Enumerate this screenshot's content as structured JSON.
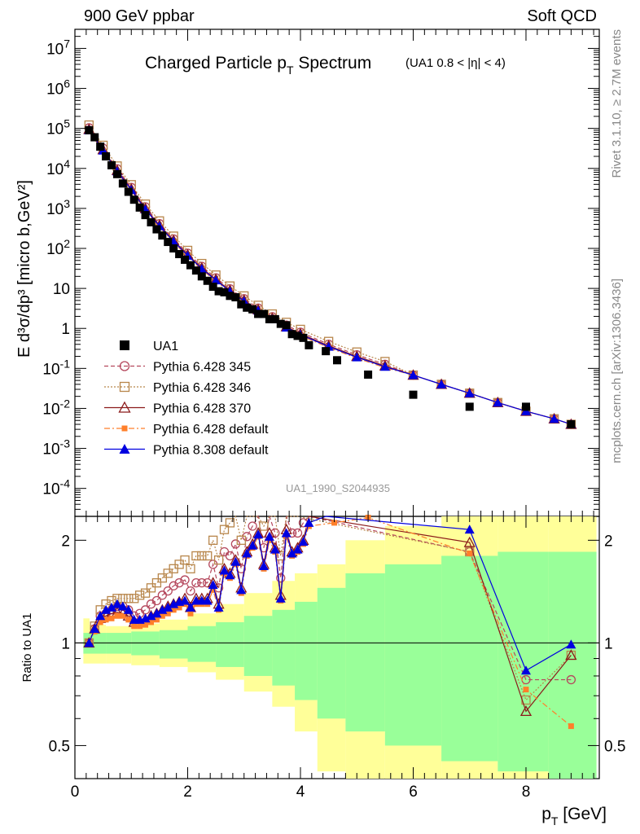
{
  "header": {
    "left": "900 GeV ppbar",
    "right": "Soft QCD"
  },
  "side": {
    "rivet": "Rivet 3.1.10, ≥ 2.7M events",
    "mcplots": "mcplots.cern.ch [arXiv:1306.3436]"
  },
  "title": {
    "main_pre": "Charged Particle p",
    "main_sub": "T",
    "main_post": " Spectrum",
    "cut": "(UA1 0.8 < |η| < 4)"
  },
  "analysis_id": "UA1_1990_S2044935",
  "axes": {
    "y_main_label": "E d³σ/dp³ [micro b,GeV²]",
    "y_ratio_label": "Ratio to UA1",
    "x_label_pre": "p",
    "x_label_sub": "T",
    "x_label_post": " [GeV]"
  },
  "chart_data": {
    "type": "scatter",
    "log_y_main": true,
    "log_y_ratio": true,
    "xlim": [
      0,
      9.3
    ],
    "ylim_main": [
      2e-05,
      30000000
    ],
    "ylim_ratio": [
      0.4,
      2.35
    ],
    "x_ticks": [
      0,
      2,
      4,
      6,
      8
    ],
    "y_main_ticks": [
      {
        "v": 10000000,
        "label": "10^7"
      },
      {
        "v": 1000000,
        "label": "10^6"
      },
      {
        "v": 100000,
        "label": "10^5"
      },
      {
        "v": 10000,
        "label": "10^4"
      },
      {
        "v": 1000,
        "label": "10^3"
      },
      {
        "v": 100,
        "label": "10^2"
      },
      {
        "v": 10,
        "label": "10"
      },
      {
        "v": 1,
        "label": "1"
      },
      {
        "v": 0.1,
        "label": "10^-1"
      },
      {
        "v": 0.01,
        "label": "10^-2"
      },
      {
        "v": 0.001,
        "label": "10^-3"
      },
      {
        "v": 0.0001,
        "label": "10^-4"
      }
    ],
    "y_ratio_ticks": [
      {
        "v": 0.5,
        "label": "0.5"
      },
      {
        "v": 1,
        "label": "1"
      },
      {
        "v": 2,
        "label": "2"
      }
    ],
    "series": [
      {
        "name": "UA1",
        "color": "#000000",
        "marker": "filled-square",
        "line": "none"
      },
      {
        "name": "Pythia 6.428 345",
        "color": "#b5485d",
        "marker": "open-circle",
        "line": "dashed"
      },
      {
        "name": "Pythia 6.428 346",
        "color": "#b8864b",
        "marker": "open-square",
        "line": "dotted"
      },
      {
        "name": "Pythia 6.428 370",
        "color": "#8b1a1a",
        "marker": "open-triangle",
        "line": "solid"
      },
      {
        "name": "Pythia 6.428 default",
        "color": "#ff7f2a",
        "marker": "filled-square-small",
        "line": "dashdot"
      },
      {
        "name": "Pythia 8.308 default",
        "color": "#0000e0",
        "marker": "filled-triangle",
        "line": "solid"
      }
    ],
    "data_x": [
      0.25,
      0.35,
      0.45,
      0.55,
      0.65,
      0.75,
      0.85,
      0.95,
      1.05,
      1.15,
      1.25,
      1.35,
      1.45,
      1.55,
      1.65,
      1.75,
      1.85,
      1.95,
      2.05,
      2.15,
      2.25,
      2.35,
      2.45,
      2.55,
      2.65,
      2.75,
      2.85,
      2.95,
      3.05,
      3.15,
      3.25,
      3.35,
      3.45,
      3.55,
      3.65,
      3.75,
      3.85,
      3.95,
      4.05,
      4.15,
      4.45,
      4.65,
      5.2,
      6.0,
      7.0,
      8.0,
      8.8
    ],
    "data_y": [
      90000,
      60000,
      35000,
      20000,
      12000,
      7200,
      4200,
      2600,
      1650,
      1050,
      680,
      450,
      300,
      210,
      145,
      100,
      72,
      52,
      38,
      28,
      20,
      15.5,
      11,
      8.5,
      8,
      6.5,
      6,
      4,
      3.3,
      3,
      2.3,
      2.3,
      1.7,
      1.7,
      1.3,
      1.2,
      0.72,
      0.65,
      0.58,
      0.38,
      0.27,
      0.16,
      0.07,
      0.022,
      0.011,
      0.011,
      0.004
    ],
    "mc_curve": [
      [
        0.25,
        90000
      ],
      [
        0.5,
        28000
      ],
      [
        0.75,
        8500
      ],
      [
        1.0,
        2900
      ],
      [
        1.25,
        950
      ],
      [
        1.5,
        360
      ],
      [
        1.75,
        150
      ],
      [
        2.0,
        66
      ],
      [
        2.25,
        31
      ],
      [
        2.5,
        16
      ],
      [
        2.75,
        8.5
      ],
      [
        3.0,
        4.8
      ],
      [
        3.25,
        2.8
      ],
      [
        3.5,
        1.7
      ],
      [
        3.75,
        1.05
      ],
      [
        4.0,
        0.7
      ],
      [
        4.5,
        0.35
      ],
      [
        5.0,
        0.19
      ],
      [
        5.5,
        0.11
      ],
      [
        6.0,
        0.068
      ],
      [
        6.5,
        0.04
      ],
      [
        7.0,
        0.024
      ],
      [
        7.5,
        0.014
      ],
      [
        8.0,
        0.0085
      ],
      [
        8.5,
        0.0055
      ],
      [
        8.8,
        0.004
      ]
    ],
    "ratio": {
      "pythia6_345": [
        [
          0.25,
          1.0
        ],
        [
          0.35,
          1.1
        ],
        [
          0.45,
          1.2
        ],
        [
          0.55,
          1.22
        ],
        [
          0.65,
          1.25
        ],
        [
          0.75,
          1.28
        ],
        [
          0.85,
          1.28
        ],
        [
          0.95,
          1.25
        ],
        [
          1.05,
          1.2
        ],
        [
          1.15,
          1.22
        ],
        [
          1.25,
          1.25
        ],
        [
          1.35,
          1.3
        ],
        [
          1.45,
          1.33
        ],
        [
          1.55,
          1.38
        ],
        [
          1.65,
          1.42
        ],
        [
          1.75,
          1.47
        ],
        [
          1.85,
          1.5
        ],
        [
          1.95,
          1.53
        ],
        [
          2.05,
          1.42
        ],
        [
          2.15,
          1.5
        ],
        [
          2.25,
          1.5
        ],
        [
          2.35,
          1.5
        ],
        [
          2.45,
          1.7
        ],
        [
          2.55,
          1.45
        ],
        [
          2.65,
          1.85
        ],
        [
          2.75,
          1.8
        ],
        [
          2.85,
          1.95
        ],
        [
          2.95,
          1.65
        ],
        [
          3.05,
          2.05
        ],
        [
          3.15,
          2.2
        ],
        [
          3.25,
          2.35
        ],
        [
          3.35,
          1.9
        ],
        [
          3.45,
          2.35
        ],
        [
          3.55,
          2.1
        ],
        [
          3.65,
          1.55
        ],
        [
          3.75,
          2.35
        ],
        [
          3.85,
          2.1
        ],
        [
          3.95,
          2.1
        ],
        [
          4.05,
          2.25
        ],
        [
          4.15,
          2.35
        ],
        [
          7.0,
          1.85
        ],
        [
          8.0,
          0.78
        ],
        [
          8.8,
          0.78
        ]
      ],
      "pythia6_346": [
        [
          0.25,
          1.0
        ],
        [
          0.35,
          1.12
        ],
        [
          0.45,
          1.25
        ],
        [
          0.55,
          1.3
        ],
        [
          0.65,
          1.33
        ],
        [
          0.75,
          1.35
        ],
        [
          0.85,
          1.35
        ],
        [
          0.95,
          1.35
        ],
        [
          1.05,
          1.35
        ],
        [
          1.15,
          1.38
        ],
        [
          1.25,
          1.4
        ],
        [
          1.35,
          1.45
        ],
        [
          1.45,
          1.5
        ],
        [
          1.55,
          1.55
        ],
        [
          1.65,
          1.6
        ],
        [
          1.75,
          1.65
        ],
        [
          1.85,
          1.7
        ],
        [
          1.95,
          1.75
        ],
        [
          2.05,
          1.65
        ],
        [
          2.15,
          1.8
        ],
        [
          2.25,
          1.8
        ],
        [
          2.35,
          1.8
        ],
        [
          2.45,
          2.0
        ],
        [
          2.55,
          1.75
        ],
        [
          2.65,
          2.15
        ],
        [
          2.75,
          2.25
        ],
        [
          2.85,
          2.35
        ],
        [
          2.95,
          2.0
        ],
        [
          3.05,
          2.35
        ],
        [
          3.15,
          2.35
        ],
        [
          3.25,
          2.35
        ],
        [
          3.35,
          2.2
        ],
        [
          3.45,
          2.35
        ],
        [
          3.55,
          2.35
        ],
        [
          3.65,
          1.8
        ],
        [
          3.75,
          2.35
        ],
        [
          3.85,
          2.35
        ],
        [
          3.95,
          2.35
        ],
        [
          7.0,
          1.85
        ],
        [
          8.0,
          0.68
        ],
        [
          8.8,
          0.92
        ]
      ],
      "pythia6_370": [
        [
          0.25,
          1.0
        ],
        [
          0.35,
          1.1
        ],
        [
          0.45,
          1.18
        ],
        [
          0.55,
          1.2
        ],
        [
          0.65,
          1.22
        ],
        [
          0.75,
          1.23
        ],
        [
          0.85,
          1.22
        ],
        [
          0.95,
          1.2
        ],
        [
          1.05,
          1.15
        ],
        [
          1.15,
          1.15
        ],
        [
          1.25,
          1.17
        ],
        [
          1.35,
          1.2
        ],
        [
          1.45,
          1.22
        ],
        [
          1.55,
          1.25
        ],
        [
          1.65,
          1.28
        ],
        [
          1.75,
          1.3
        ],
        [
          1.85,
          1.32
        ],
        [
          1.95,
          1.35
        ],
        [
          2.05,
          1.27
        ],
        [
          2.15,
          1.35
        ],
        [
          2.25,
          1.35
        ],
        [
          2.35,
          1.35
        ],
        [
          2.45,
          1.5
        ],
        [
          2.55,
          1.3
        ],
        [
          2.65,
          1.65
        ],
        [
          2.75,
          1.6
        ],
        [
          2.85,
          1.75
        ],
        [
          2.95,
          1.45
        ],
        [
          3.05,
          1.85
        ],
        [
          3.15,
          1.95
        ],
        [
          3.25,
          2.1
        ],
        [
          3.35,
          1.7
        ],
        [
          3.45,
          2.1
        ],
        [
          3.55,
          1.9
        ],
        [
          3.65,
          1.38
        ],
        [
          3.75,
          2.15
        ],
        [
          3.85,
          1.85
        ],
        [
          3.95,
          1.9
        ],
        [
          4.05,
          2.0
        ],
        [
          4.15,
          2.35
        ],
        [
          7.0,
          1.97
        ],
        [
          8.0,
          0.63
        ],
        [
          8.8,
          0.92
        ]
      ],
      "pythia6_default": [
        [
          0.25,
          1.0
        ],
        [
          0.35,
          1.08
        ],
        [
          0.45,
          1.15
        ],
        [
          0.55,
          1.17
        ],
        [
          0.65,
          1.18
        ],
        [
          0.75,
          1.2
        ],
        [
          0.85,
          1.2
        ],
        [
          0.95,
          1.17
        ],
        [
          1.05,
          1.12
        ],
        [
          1.15,
          1.12
        ],
        [
          1.25,
          1.13
        ],
        [
          1.35,
          1.15
        ],
        [
          1.45,
          1.17
        ],
        [
          1.55,
          1.2
        ],
        [
          1.65,
          1.22
        ],
        [
          1.75,
          1.25
        ],
        [
          1.85,
          1.27
        ],
        [
          1.95,
          1.3
        ],
        [
          2.05,
          1.22
        ],
        [
          2.15,
          1.3
        ],
        [
          2.25,
          1.3
        ],
        [
          2.35,
          1.3
        ],
        [
          2.45,
          1.43
        ],
        [
          2.55,
          1.25
        ],
        [
          2.65,
          1.6
        ],
        [
          2.75,
          1.55
        ],
        [
          2.85,
          1.7
        ],
        [
          2.95,
          1.4
        ],
        [
          3.05,
          1.8
        ],
        [
          3.15,
          1.9
        ],
        [
          3.25,
          2.05
        ],
        [
          3.35,
          1.65
        ],
        [
          3.45,
          2.0
        ],
        [
          3.55,
          1.85
        ],
        [
          3.65,
          1.33
        ],
        [
          3.75,
          2.05
        ],
        [
          3.85,
          1.8
        ],
        [
          3.95,
          1.85
        ],
        [
          4.05,
          1.95
        ],
        [
          4.15,
          2.2
        ],
        [
          4.6,
          2.25
        ],
        [
          5.2,
          2.33
        ],
        [
          7.0,
          1.83
        ],
        [
          8.0,
          0.73
        ],
        [
          8.8,
          0.57
        ]
      ],
      "pythia8_default": [
        [
          0.25,
          1.0
        ],
        [
          0.35,
          1.1
        ],
        [
          0.45,
          1.2
        ],
        [
          0.55,
          1.25
        ],
        [
          0.65,
          1.27
        ],
        [
          0.75,
          1.3
        ],
        [
          0.85,
          1.28
        ],
        [
          0.95,
          1.25
        ],
        [
          1.05,
          1.17
        ],
        [
          1.15,
          1.17
        ],
        [
          1.25,
          1.18
        ],
        [
          1.35,
          1.2
        ],
        [
          1.45,
          1.22
        ],
        [
          1.55,
          1.25
        ],
        [
          1.65,
          1.27
        ],
        [
          1.75,
          1.3
        ],
        [
          1.85,
          1.32
        ],
        [
          1.95,
          1.33
        ],
        [
          2.05,
          1.27
        ],
        [
          2.15,
          1.33
        ],
        [
          2.25,
          1.33
        ],
        [
          2.35,
          1.33
        ],
        [
          2.45,
          1.48
        ],
        [
          2.55,
          1.27
        ],
        [
          2.65,
          1.63
        ],
        [
          2.75,
          1.58
        ],
        [
          2.85,
          1.73
        ],
        [
          2.95,
          1.43
        ],
        [
          3.05,
          1.83
        ],
        [
          3.15,
          1.93
        ],
        [
          3.25,
          2.08
        ],
        [
          3.35,
          1.68
        ],
        [
          3.45,
          2.05
        ],
        [
          3.55,
          1.88
        ],
        [
          3.65,
          1.35
        ],
        [
          3.75,
          2.1
        ],
        [
          3.85,
          1.83
        ],
        [
          3.95,
          1.88
        ],
        [
          4.05,
          1.98
        ],
        [
          4.15,
          2.25
        ],
        [
          4.45,
          2.35
        ],
        [
          7.0,
          2.15
        ],
        [
          8.0,
          0.83
        ],
        [
          8.8,
          0.99
        ]
      ]
    },
    "bands": {
      "yellow": [
        [
          0.15,
          0.26,
          0.87,
          1.18
        ],
        [
          0.26,
          0.55,
          0.87,
          1.13
        ],
        [
          0.55,
          1.0,
          0.87,
          1.12
        ],
        [
          1.0,
          1.5,
          0.86,
          1.14
        ],
        [
          1.5,
          2.0,
          0.85,
          1.17
        ],
        [
          2.0,
          2.5,
          0.82,
          1.22
        ],
        [
          2.5,
          3.0,
          0.78,
          1.3
        ],
        [
          3.0,
          3.5,
          0.72,
          1.4
        ],
        [
          3.5,
          3.9,
          0.65,
          1.52
        ],
        [
          3.9,
          4.3,
          0.55,
          1.6
        ],
        [
          4.3,
          4.8,
          0.42,
          1.7
        ],
        [
          4.8,
          5.5,
          0.4,
          2.0
        ],
        [
          5.5,
          6.5,
          0.4,
          2.2
        ],
        [
          6.5,
          7.5,
          0.4,
          2.35
        ],
        [
          7.5,
          8.4,
          0.4,
          2.35
        ],
        [
          8.4,
          9.25,
          0.4,
          2.35
        ]
      ],
      "green": [
        [
          0.15,
          0.26,
          0.93,
          1.07
        ],
        [
          0.26,
          0.55,
          0.93,
          1.07
        ],
        [
          0.55,
          1.0,
          0.93,
          1.07
        ],
        [
          1.0,
          1.5,
          0.92,
          1.08
        ],
        [
          1.5,
          2.0,
          0.9,
          1.09
        ],
        [
          2.0,
          2.5,
          0.88,
          1.12
        ],
        [
          2.5,
          3.0,
          0.85,
          1.15
        ],
        [
          3.0,
          3.5,
          0.8,
          1.2
        ],
        [
          3.5,
          3.9,
          0.75,
          1.25
        ],
        [
          3.9,
          4.3,
          0.68,
          1.32
        ],
        [
          4.3,
          4.8,
          0.6,
          1.45
        ],
        [
          4.8,
          5.5,
          0.55,
          1.6
        ],
        [
          5.5,
          6.5,
          0.5,
          1.7
        ],
        [
          6.5,
          7.5,
          0.45,
          1.8
        ],
        [
          7.5,
          8.4,
          0.42,
          1.85
        ],
        [
          8.4,
          9.25,
          0.4,
          1.85
        ]
      ]
    }
  }
}
